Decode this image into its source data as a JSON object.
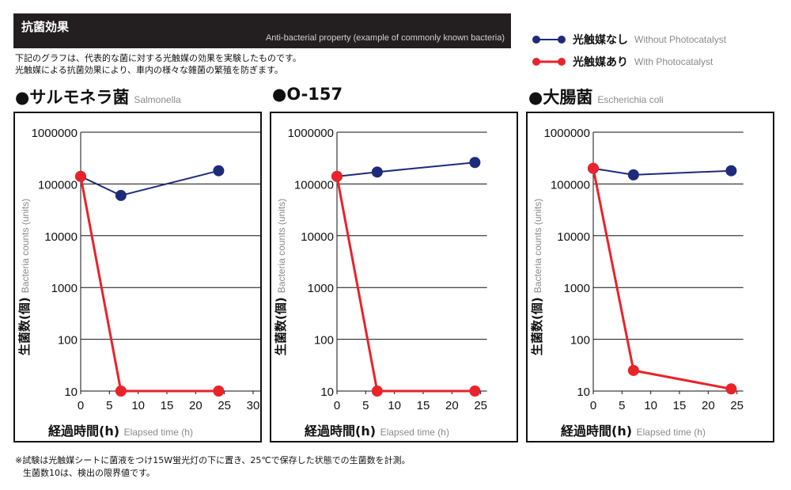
{
  "header": {
    "title": "抗菌効果",
    "subtitle": "Anti-bacterial property (example of commonly known bacteria)"
  },
  "description": [
    "下記のグラフは、代表的な菌に対する光触媒の効果を実験したものです。",
    "光触媒による抗菌効果により、車内の様々な雑菌の繁殖を防ぎます。"
  ],
  "legend": [
    {
      "jp": "光触媒なし",
      "en": "Without Photocatalyst",
      "color": "#1e2a7a"
    },
    {
      "jp": "光触媒あり",
      "en": "With Photocatalyst",
      "color": "#e8232a"
    }
  ],
  "charts": [
    {
      "title_jp": "●サルモネラ菌",
      "title_en": "Salmonella"
    },
    {
      "title_jp": "●O-157",
      "title_en": ""
    },
    {
      "title_jp": "●大腸菌",
      "title_en": "Escherichia coli"
    }
  ],
  "chart_data": [
    {
      "type": "line",
      "title": "●サルモネラ菌 Salmonella",
      "xlabel": "経過時間(h) Elapsed time (h)",
      "ylabel": "生菌数(個) Bacteria counts (units)",
      "xlim": [
        0,
        30
      ],
      "xticks": [
        0,
        5,
        10,
        15,
        20,
        25,
        30
      ],
      "ylim": [
        10,
        1000000
      ],
      "yscale": "log",
      "yticks": [
        10,
        100,
        1000,
        10000,
        100000,
        1000000
      ],
      "grid": true,
      "series": [
        {
          "name": "光触媒なし Without Photocatalyst",
          "color": "#1e2a7a",
          "x": [
            0,
            7,
            24
          ],
          "y": [
            140000,
            60000,
            180000
          ]
        },
        {
          "name": "光触媒あり With Photocatalyst",
          "color": "#e8232a",
          "x": [
            0,
            7,
            24
          ],
          "y": [
            140000,
            10,
            10
          ]
        }
      ]
    },
    {
      "type": "line",
      "title": "●O-157",
      "xlabel": "経過時間(h) Elapsed time (h)",
      "ylabel": "生菌数(個) Bacteria counts (units)",
      "xlim": [
        0,
        25
      ],
      "xticks": [
        0,
        5,
        10,
        15,
        20,
        25
      ],
      "ylim": [
        10,
        1000000
      ],
      "yscale": "log",
      "yticks": [
        10,
        100,
        1000,
        10000,
        100000,
        1000000
      ],
      "grid": true,
      "series": [
        {
          "name": "光触媒なし Without Photocatalyst",
          "color": "#1e2a7a",
          "x": [
            0,
            7,
            24
          ],
          "y": [
            140000,
            170000,
            260000
          ]
        },
        {
          "name": "光触媒あり With Photocatalyst",
          "color": "#e8232a",
          "x": [
            0,
            7,
            24
          ],
          "y": [
            140000,
            10,
            10
          ]
        }
      ]
    },
    {
      "type": "line",
      "title": "●大腸菌 Escherichia coli",
      "xlabel": "経過時間(h) Elapsed time (h)",
      "ylabel": "生菌数(個) Bacteria counts (units)",
      "xlim": [
        0,
        25
      ],
      "xticks": [
        0,
        5,
        10,
        15,
        20,
        25
      ],
      "ylim": [
        10,
        1000000
      ],
      "yscale": "log",
      "yticks": [
        10,
        100,
        1000,
        10000,
        100000,
        1000000
      ],
      "grid": true,
      "series": [
        {
          "name": "光触媒なし Without Photocatalyst",
          "color": "#1e2a7a",
          "x": [
            0,
            7,
            24
          ],
          "y": [
            200000,
            150000,
            180000
          ]
        },
        {
          "name": "光触媒あり With Photocatalyst",
          "color": "#e8232a",
          "x": [
            0,
            7,
            24
          ],
          "y": [
            200000,
            25,
            11
          ]
        }
      ]
    }
  ],
  "axis_text": {
    "ylabel_jp": "生菌数(個)",
    "ylabel_en": "Bacteria counts (units)",
    "xlabel_jp": "経過時間(h)",
    "xlabel_en": "Elapsed time (h)"
  },
  "footnote": [
    "※試験は光触媒シートに菌液をつけ15W蛍光灯の下に置き、25℃で保存した状態での生菌数を計測。",
    "生菌数10は、検出の限界値です。"
  ]
}
